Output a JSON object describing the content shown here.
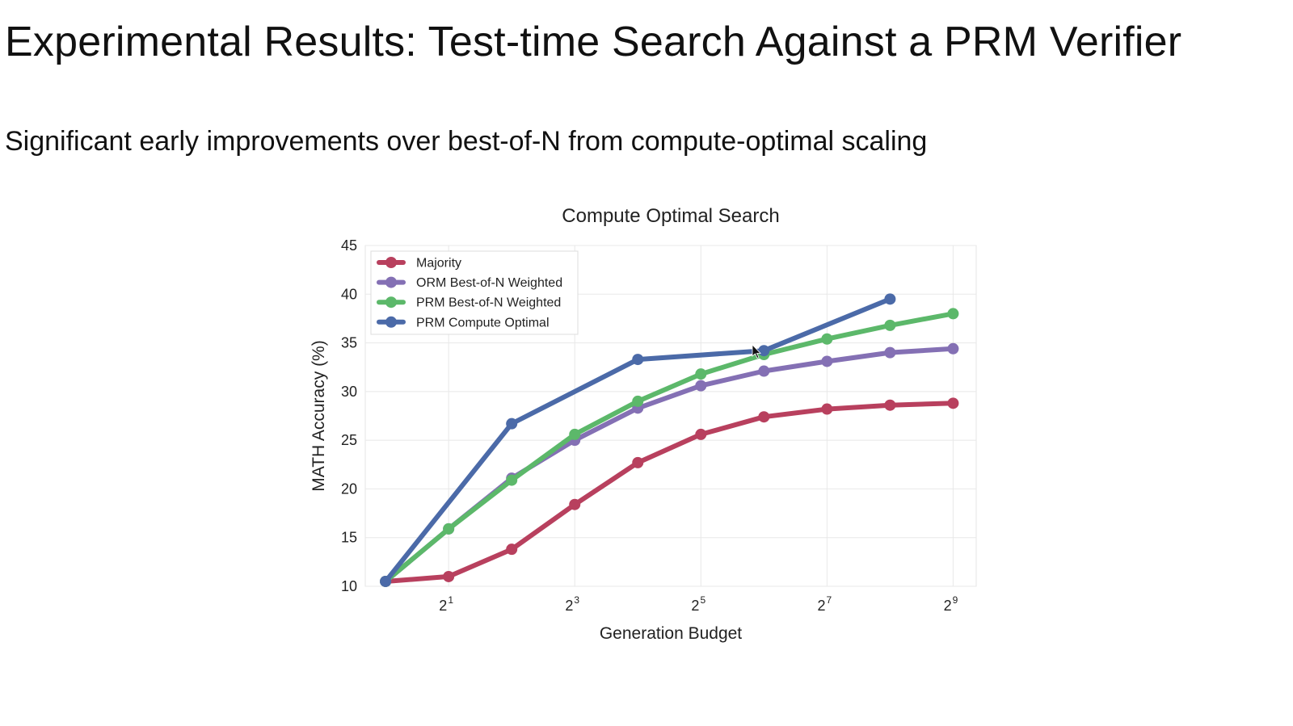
{
  "slide": {
    "title": "Experimental Results: Test-time Search Against a PRM Verifier",
    "subtitle": "Significant early improvements over best-of-N from compute-optimal scaling"
  },
  "chart_data": {
    "type": "line",
    "title": "Compute Optimal Search",
    "xlabel": "Generation Budget",
    "ylabel": "MATH Accuracy (%)",
    "x_scale": "log2",
    "x": [
      1,
      2,
      4,
      8,
      16,
      32,
      64,
      128,
      256,
      512
    ],
    "x_ticks": [
      {
        "base": "2",
        "exp": "1",
        "value": 2
      },
      {
        "base": "2",
        "exp": "3",
        "value": 8
      },
      {
        "base": "2",
        "exp": "5",
        "value": 32
      },
      {
        "base": "2",
        "exp": "7",
        "value": 128
      },
      {
        "base": "2",
        "exp": "9",
        "value": 512
      }
    ],
    "xlim": [
      0.8,
      660
    ],
    "ylim": [
      10,
      45
    ],
    "y_ticks": [
      "10",
      "15",
      "20",
      "25",
      "30",
      "35",
      "40",
      "45"
    ],
    "grid": true,
    "legend_position": "top-left",
    "series": [
      {
        "name": "Majority",
        "color": "#b8405e",
        "x": [
          1,
          2,
          4,
          8,
          16,
          32,
          64,
          128,
          256,
          512
        ],
        "values": [
          10.5,
          11.0,
          13.8,
          18.4,
          22.7,
          25.6,
          27.4,
          28.2,
          28.6,
          28.8
        ]
      },
      {
        "name": "ORM Best-of-N Weighted",
        "color": "#8470b4",
        "x": [
          1,
          2,
          4,
          8,
          16,
          32,
          64,
          128,
          256,
          512
        ],
        "values": [
          10.5,
          15.9,
          21.1,
          25.0,
          28.3,
          30.6,
          32.1,
          33.1,
          34.0,
          34.4
        ]
      },
      {
        "name": "PRM Best-of-N Weighted",
        "color": "#5cb86a",
        "x": [
          1,
          2,
          4,
          8,
          16,
          32,
          64,
          128,
          256,
          512
        ],
        "values": [
          10.5,
          15.9,
          20.9,
          25.6,
          29.0,
          31.8,
          33.8,
          35.4,
          36.8,
          38.0
        ]
      },
      {
        "name": "PRM Compute Optimal",
        "color": "#4b6aa8",
        "x": [
          1,
          4,
          16,
          64,
          256
        ],
        "values": [
          10.5,
          26.7,
          33.3,
          34.2,
          39.5
        ]
      }
    ]
  }
}
